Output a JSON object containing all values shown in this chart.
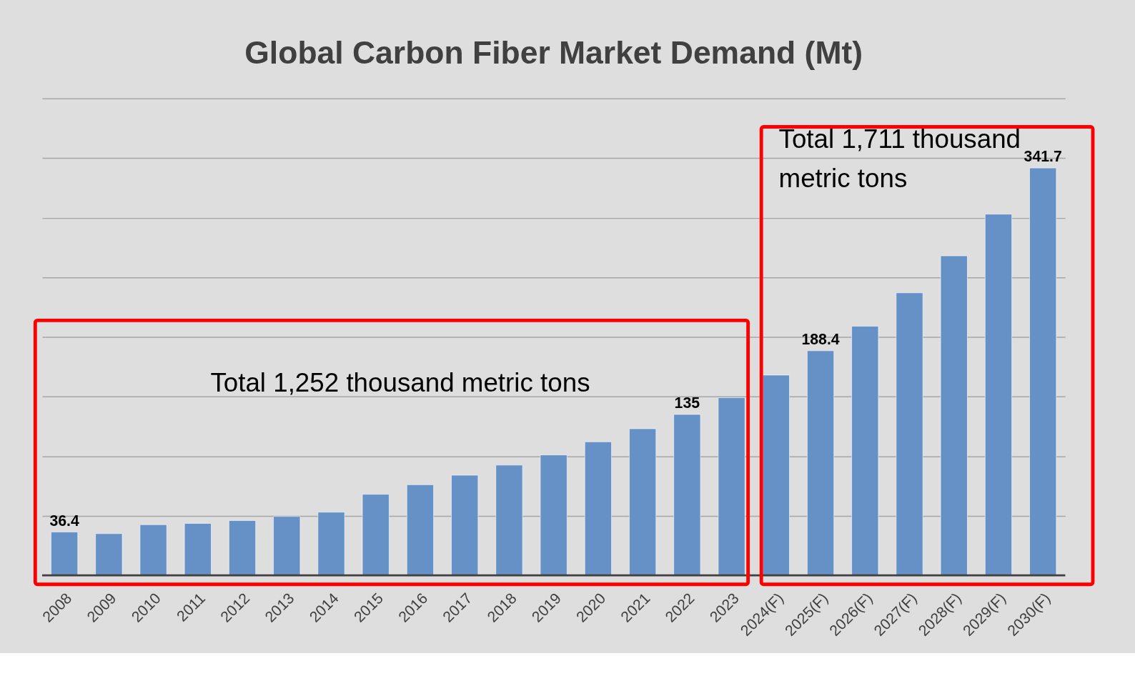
{
  "chart_data": {
    "type": "bar",
    "title": "Global Carbon Fiber Market Demand (Mt)",
    "categories": [
      "2008",
      "2009",
      "2010",
      "2011",
      "2012",
      "2013",
      "2014",
      "2015",
      "2016",
      "2017",
      "2018",
      "2019",
      "2020",
      "2021",
      "2022",
      "2023",
      "2024(F)",
      "2025(F)",
      "2026(F)",
      "2027(F)",
      "2028(F)",
      "2029(F)",
      "2030(F)"
    ],
    "values": [
      36.4,
      35,
      42.5,
      43.6,
      46,
      49.4,
      53,
      68,
      76,
      84,
      92.5,
      101,
      112,
      123,
      135,
      149,
      168,
      188.4,
      209,
      237,
      268,
      303,
      341.7
    ],
    "value_labels": [
      "36.4",
      null,
      null,
      null,
      null,
      null,
      null,
      null,
      null,
      null,
      null,
      null,
      null,
      null,
      "135",
      null,
      null,
      "188.4",
      null,
      null,
      null,
      null,
      "341.7"
    ],
    "color": "#6591c7",
    "ylim": [
      0,
      400
    ],
    "yticks": [
      {
        "value": 0,
        "label": null
      },
      {
        "value": 50,
        "label": null
      },
      {
        "value": 100,
        "label": null
      },
      {
        "value": 150,
        "label": null
      },
      {
        "value": 200,
        "label": null
      },
      {
        "value": 250,
        "label": null
      },
      {
        "value": 300,
        "label": null
      },
      {
        "value": 350,
        "label": null
      },
      {
        "value": 400,
        "label": null
      }
    ],
    "grid": "y",
    "tick_labels": "x",
    "annotations": [
      "Total 1,252 thousand metric tons",
      "Total 1,711 thousand metric tons"
    ]
  }
}
